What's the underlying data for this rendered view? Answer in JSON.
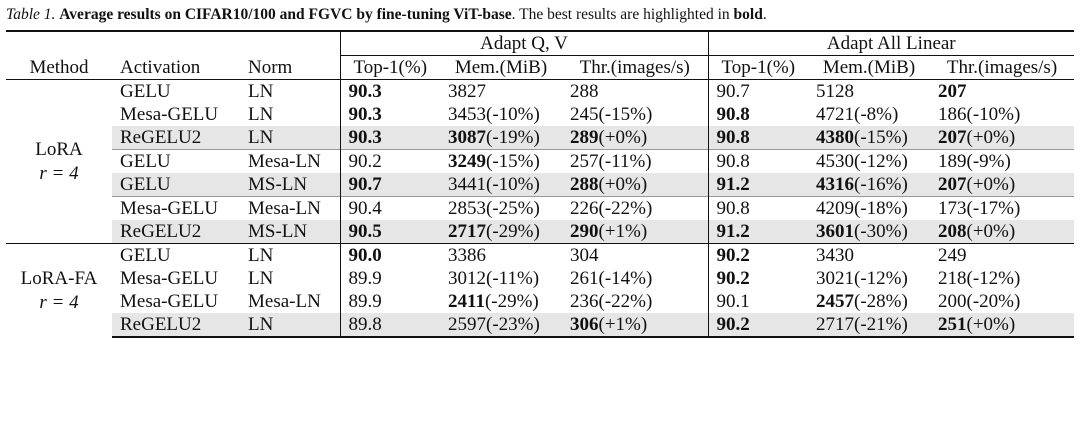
{
  "caption": {
    "label": "Table 1.",
    "bold_text": "Average results on CIFAR10/100 and FGVC by fine-tuning ViT-base",
    "tail_a": ". The best results are highlighted in ",
    "tail_bold": "bold",
    "tail_b": "."
  },
  "header": {
    "group1": "Adapt Q, V",
    "group2": "Adapt All Linear",
    "method": "Method",
    "activation": "Activation",
    "norm": "Norm",
    "top1": "Top-1(%)",
    "mem": "Mem.(MiB)",
    "thr": "Thr.(images/s)"
  },
  "blocks": [
    {
      "method_line1": "LoRA",
      "method_line2": "r = 4",
      "rows": [
        {
          "act": "GELU",
          "norm": "LN",
          "qv_top1": "90.3",
          "qv_mem": "3827",
          "qv_mem_pct": "",
          "qv_thr": "288",
          "qv_thr_pct": "",
          "al_top1": "90.7",
          "al_mem": "5128",
          "al_mem_pct": "",
          "al_thr": "207",
          "al_thr_pct": ""
        },
        {
          "act": "Mesa-GELU",
          "norm": "LN",
          "qv_top1": "90.3",
          "qv_mem": "3453",
          "qv_mem_pct": "(-10%)",
          "qv_thr": "245",
          "qv_thr_pct": "(-15%)",
          "al_top1": "90.8",
          "al_mem": "4721",
          "al_mem_pct": "(-8%)",
          "al_thr": "186",
          "al_thr_pct": "(-10%)"
        },
        {
          "act": "ReGELU2",
          "norm": "LN",
          "qv_top1": "90.3",
          "qv_mem": "3087",
          "qv_mem_pct": "(-19%)",
          "qv_thr": "289",
          "qv_thr_pct": "(+0%)",
          "al_top1": "90.8",
          "al_mem": "4380",
          "al_mem_pct": "(-15%)",
          "al_thr": "207",
          "al_thr_pct": "(+0%)"
        },
        {
          "act": "GELU",
          "norm": "Mesa-LN",
          "qv_top1": "90.2",
          "qv_mem": "3249",
          "qv_mem_pct": "(-15%)",
          "qv_thr": "257",
          "qv_thr_pct": "(-11%)",
          "al_top1": "90.8",
          "al_mem": "4530",
          "al_mem_pct": "(-12%)",
          "al_thr": "189",
          "al_thr_pct": "(-9%)"
        },
        {
          "act": "GELU",
          "norm": "MS-LN",
          "qv_top1": "90.7",
          "qv_mem": "3441",
          "qv_mem_pct": "(-10%)",
          "qv_thr": "288",
          "qv_thr_pct": "(+0%)",
          "al_top1": "91.2",
          "al_mem": "4316",
          "al_mem_pct": "(-16%)",
          "al_thr": "207",
          "al_thr_pct": "(+0%)"
        },
        {
          "act": "Mesa-GELU",
          "norm": "Mesa-LN",
          "qv_top1": "90.4",
          "qv_mem": "2853",
          "qv_mem_pct": "(-25%)",
          "qv_thr": "226",
          "qv_thr_pct": "(-22%)",
          "al_top1": "90.8",
          "al_mem": "4209",
          "al_mem_pct": "(-18%)",
          "al_thr": "173",
          "al_thr_pct": "(-17%)"
        },
        {
          "act": "ReGELU2",
          "norm": "MS-LN",
          "qv_top1": "90.5",
          "qv_mem": "2717",
          "qv_mem_pct": "(-29%)",
          "qv_thr": "290",
          "qv_thr_pct": "(+1%)",
          "al_top1": "91.2",
          "al_mem": "3601",
          "al_mem_pct": "(-30%)",
          "al_thr": "208",
          "al_thr_pct": "(+0%)"
        }
      ]
    },
    {
      "method_line1": "LoRA-FA",
      "method_line2": "r = 4",
      "rows": [
        {
          "act": "GELU",
          "norm": "LN",
          "qv_top1": "90.0",
          "qv_mem": "3386",
          "qv_mem_pct": "",
          "qv_thr": "304",
          "qv_thr_pct": "",
          "al_top1": "90.2",
          "al_mem": "3430",
          "al_mem_pct": "",
          "al_thr": "249",
          "al_thr_pct": ""
        },
        {
          "act": "Mesa-GELU",
          "norm": "LN",
          "qv_top1": "89.9",
          "qv_mem": "3012",
          "qv_mem_pct": "(-11%)",
          "qv_thr": "261",
          "qv_thr_pct": "(-14%)",
          "al_top1": "90.2",
          "al_mem": "3021",
          "al_mem_pct": "(-12%)",
          "al_thr": "218",
          "al_thr_pct": "(-12%)"
        },
        {
          "act": "Mesa-GELU",
          "norm": "Mesa-LN",
          "qv_top1": "89.9",
          "qv_mem": "2411",
          "qv_mem_pct": "(-29%)",
          "qv_thr": "236",
          "qv_thr_pct": "(-22%)",
          "al_top1": "90.1",
          "al_mem": "2457",
          "al_mem_pct": "(-28%)",
          "al_thr": "200",
          "al_thr_pct": "(-20%)"
        },
        {
          "act": "ReGELU2",
          "norm": "LN",
          "qv_top1": "89.8",
          "qv_mem": "2597",
          "qv_mem_pct": "(-23%)",
          "qv_thr": "306",
          "qv_thr_pct": "(+1%)",
          "al_top1": "90.2",
          "al_mem": "2717",
          "al_mem_pct": "(-21%)",
          "al_thr": "251",
          "al_thr_pct": "(+0%)"
        }
      ]
    }
  ]
}
